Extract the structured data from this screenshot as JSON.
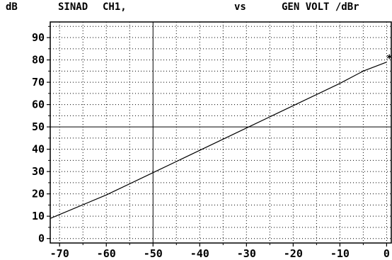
{
  "header": {
    "y_unit": "dB",
    "measurement": "SINAD",
    "channel": "CH1,",
    "versus": "vs",
    "x_quantity": "GEN VOLT /dBr"
  },
  "chart_data": {
    "type": "line",
    "title": "SINAD  CH1,  vs  GEN VOLT /dBr",
    "xlabel": "GEN VOLT /dBr",
    "ylabel": "dB",
    "xlim": [
      -72,
      1
    ],
    "ylim": [
      -2,
      97
    ],
    "x_ticks": [
      -70,
      -60,
      -50,
      -40,
      -30,
      -20,
      -10,
      0
    ],
    "y_ticks": [
      0,
      10,
      20,
      30,
      40,
      50,
      60,
      70,
      80,
      90
    ],
    "grid": "dotted",
    "series": [
      {
        "x": [
          -72,
          -60,
          -50,
          -40,
          -30,
          -20,
          -10,
          -5,
          0
        ],
        "y": [
          9,
          19.5,
          29.5,
          39.5,
          49.5,
          59.5,
          69.5,
          75,
          79
        ]
      }
    ],
    "end_marker": {
      "x": 0.5,
      "y": 81,
      "symbol": "*"
    }
  }
}
